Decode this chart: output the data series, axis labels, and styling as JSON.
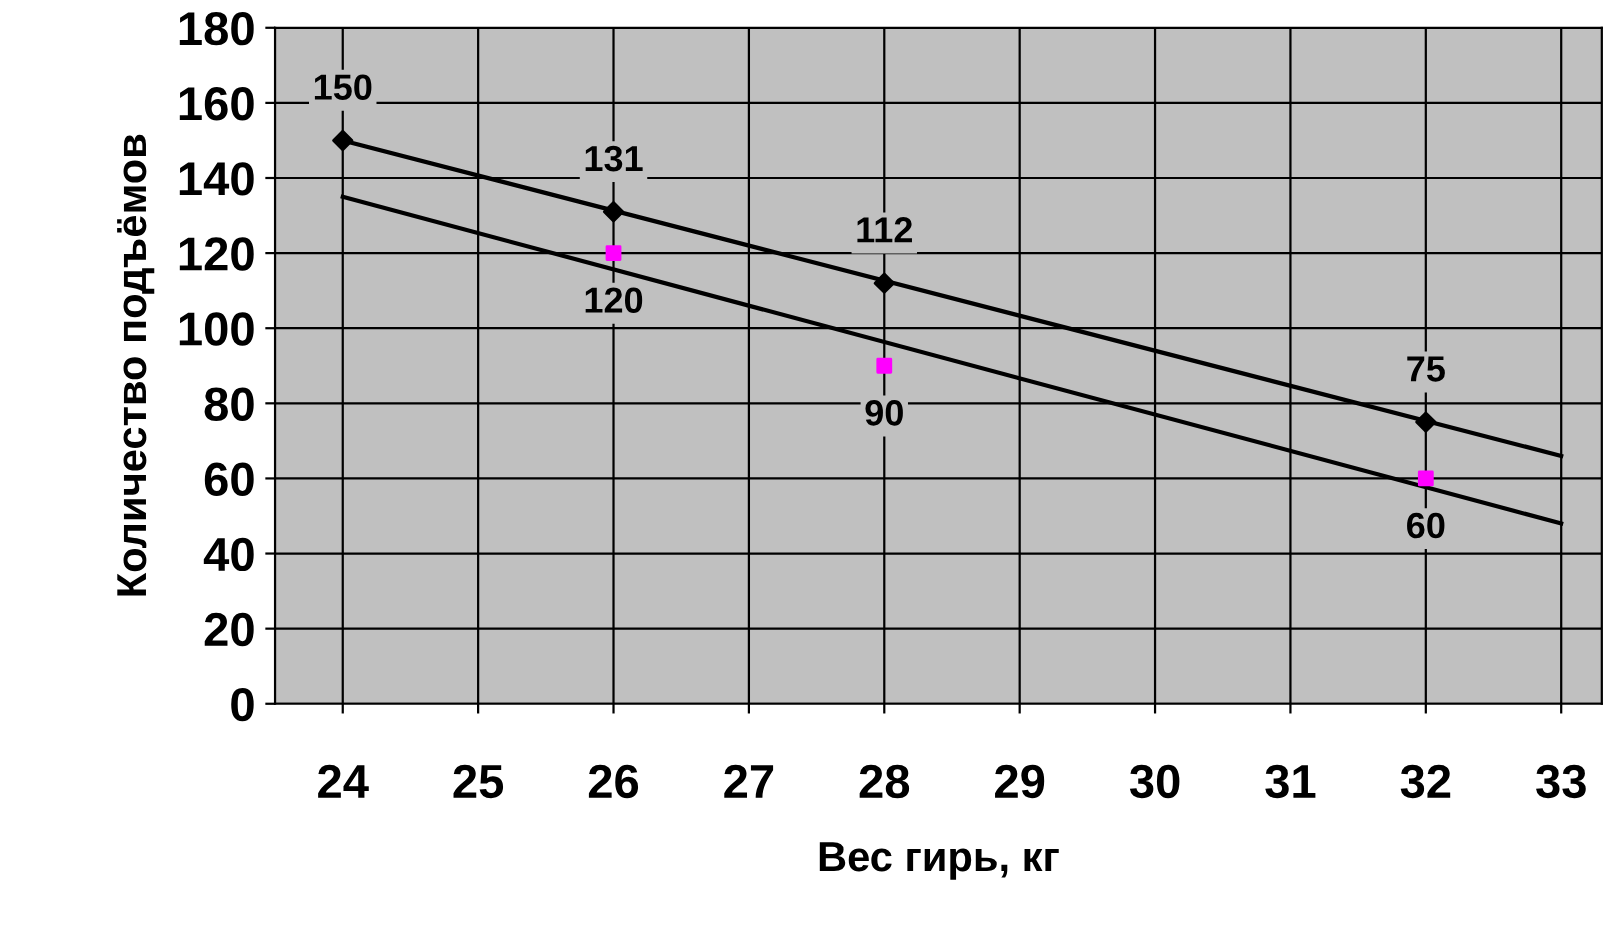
{
  "chart_data": {
    "type": "scatter",
    "xlabel": "Вес гирь, кг",
    "ylabel": "Количество подъёмов",
    "xlim": [
      23.5,
      33.3
    ],
    "xticks": [
      24,
      25,
      26,
      27,
      28,
      29,
      30,
      31,
      32,
      33
    ],
    "ylim": [
      0,
      180
    ],
    "yticks": [
      0,
      20,
      40,
      60,
      80,
      100,
      120,
      140,
      160,
      180
    ],
    "grid": true,
    "legend": false,
    "series": [
      {
        "type": "line",
        "color": "#000000",
        "x": [
          24,
          33
        ],
        "values": [
          150,
          66
        ],
        "marker": "none"
      },
      {
        "type": "line",
        "color": "#000000",
        "x": [
          24,
          33
        ],
        "values": [
          135,
          48
        ],
        "marker": "none"
      },
      {
        "color": "#000000",
        "marker": "diamond",
        "x": [
          24,
          26,
          28,
          32
        ],
        "values": [
          150,
          131,
          112,
          75
        ],
        "value_labels": [
          "150",
          "131",
          "112",
          "75"
        ]
      },
      {
        "color": "#ff00ff",
        "marker": "square",
        "x": [
          26,
          28,
          32
        ],
        "values": [
          120,
          90,
          60
        ],
        "value_labels": [
          "120",
          "90",
          "60"
        ]
      }
    ]
  }
}
